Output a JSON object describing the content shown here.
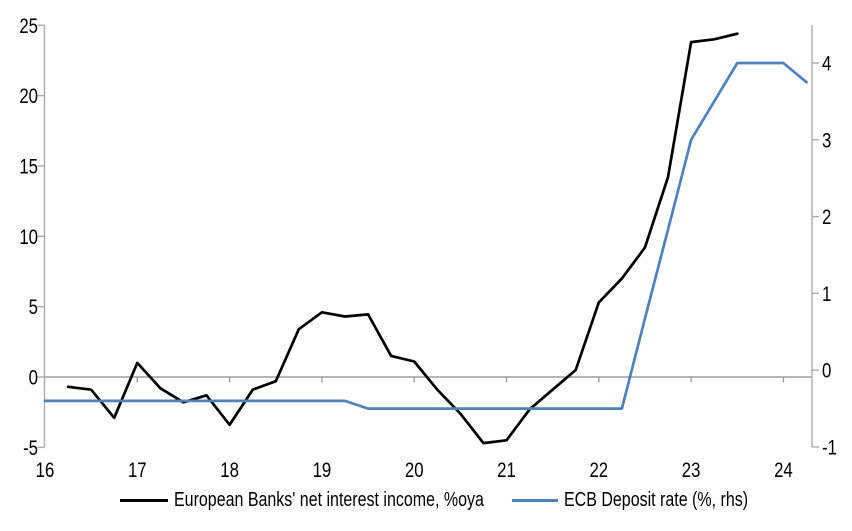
{
  "chart_data": {
    "type": "line",
    "x_axis": {
      "ticks": [
        16,
        17,
        18,
        19,
        20,
        21,
        22,
        23,
        24
      ],
      "min": 16,
      "max": 24.31
    },
    "left_axis": {
      "ticks": [
        25,
        20,
        15,
        10,
        5,
        0,
        -5
      ],
      "min": -5,
      "max": 25
    },
    "right_axis": {
      "ticks": [
        4,
        3,
        2,
        1,
        0,
        -1
      ],
      "min": -1,
      "max": 4.5
    },
    "grid": "zero-line-only",
    "legend_position": "bottom",
    "series": [
      {
        "name": "European Banks' net interest income, %oya",
        "axis": "left",
        "color": "#000000",
        "x": [
          16.25,
          16.5,
          16.75,
          17.0,
          17.25,
          17.5,
          17.75,
          18.0,
          18.25,
          18.5,
          18.75,
          19.0,
          19.25,
          19.5,
          19.75,
          20.0,
          20.25,
          20.5,
          20.75,
          21.0,
          21.25,
          21.5,
          21.75,
          22.0,
          22.25,
          22.5,
          22.75,
          23.0,
          23.25,
          23.5
        ],
        "values": [
          -0.7,
          -0.9,
          -2.9,
          1.0,
          -0.8,
          -1.8,
          -1.3,
          -3.4,
          -0.9,
          -0.3,
          3.4,
          4.6,
          4.3,
          4.45,
          1.5,
          1.1,
          -0.9,
          -2.6,
          -4.7,
          -4.5,
          -2.3,
          -0.9,
          0.5,
          5.3,
          7.0,
          9.2,
          14.2,
          23.8,
          24.0,
          24.4
        ]
      },
      {
        "name": "ECB Deposit rate (%, rhs)",
        "axis": "right",
        "color": "#4f81bd",
        "x": [
          16.0,
          19.25,
          19.5,
          22.25,
          22.5,
          22.75,
          23.0,
          23.25,
          23.5,
          24.0,
          24.25
        ],
        "values": [
          -0.4,
          -0.4,
          -0.5,
          -0.5,
          0.67,
          1.83,
          3.0,
          3.5,
          4.0,
          4.0,
          3.75
        ]
      }
    ],
    "colors": {
      "axis_line": "#ababab",
      "zero_line": "#9d9d9d",
      "tick_text": "#000000"
    }
  },
  "legend": {
    "items": [
      {
        "label": "European Banks' net interest income, %oya"
      },
      {
        "label": "ECB Deposit rate (%, rhs)"
      }
    ]
  }
}
